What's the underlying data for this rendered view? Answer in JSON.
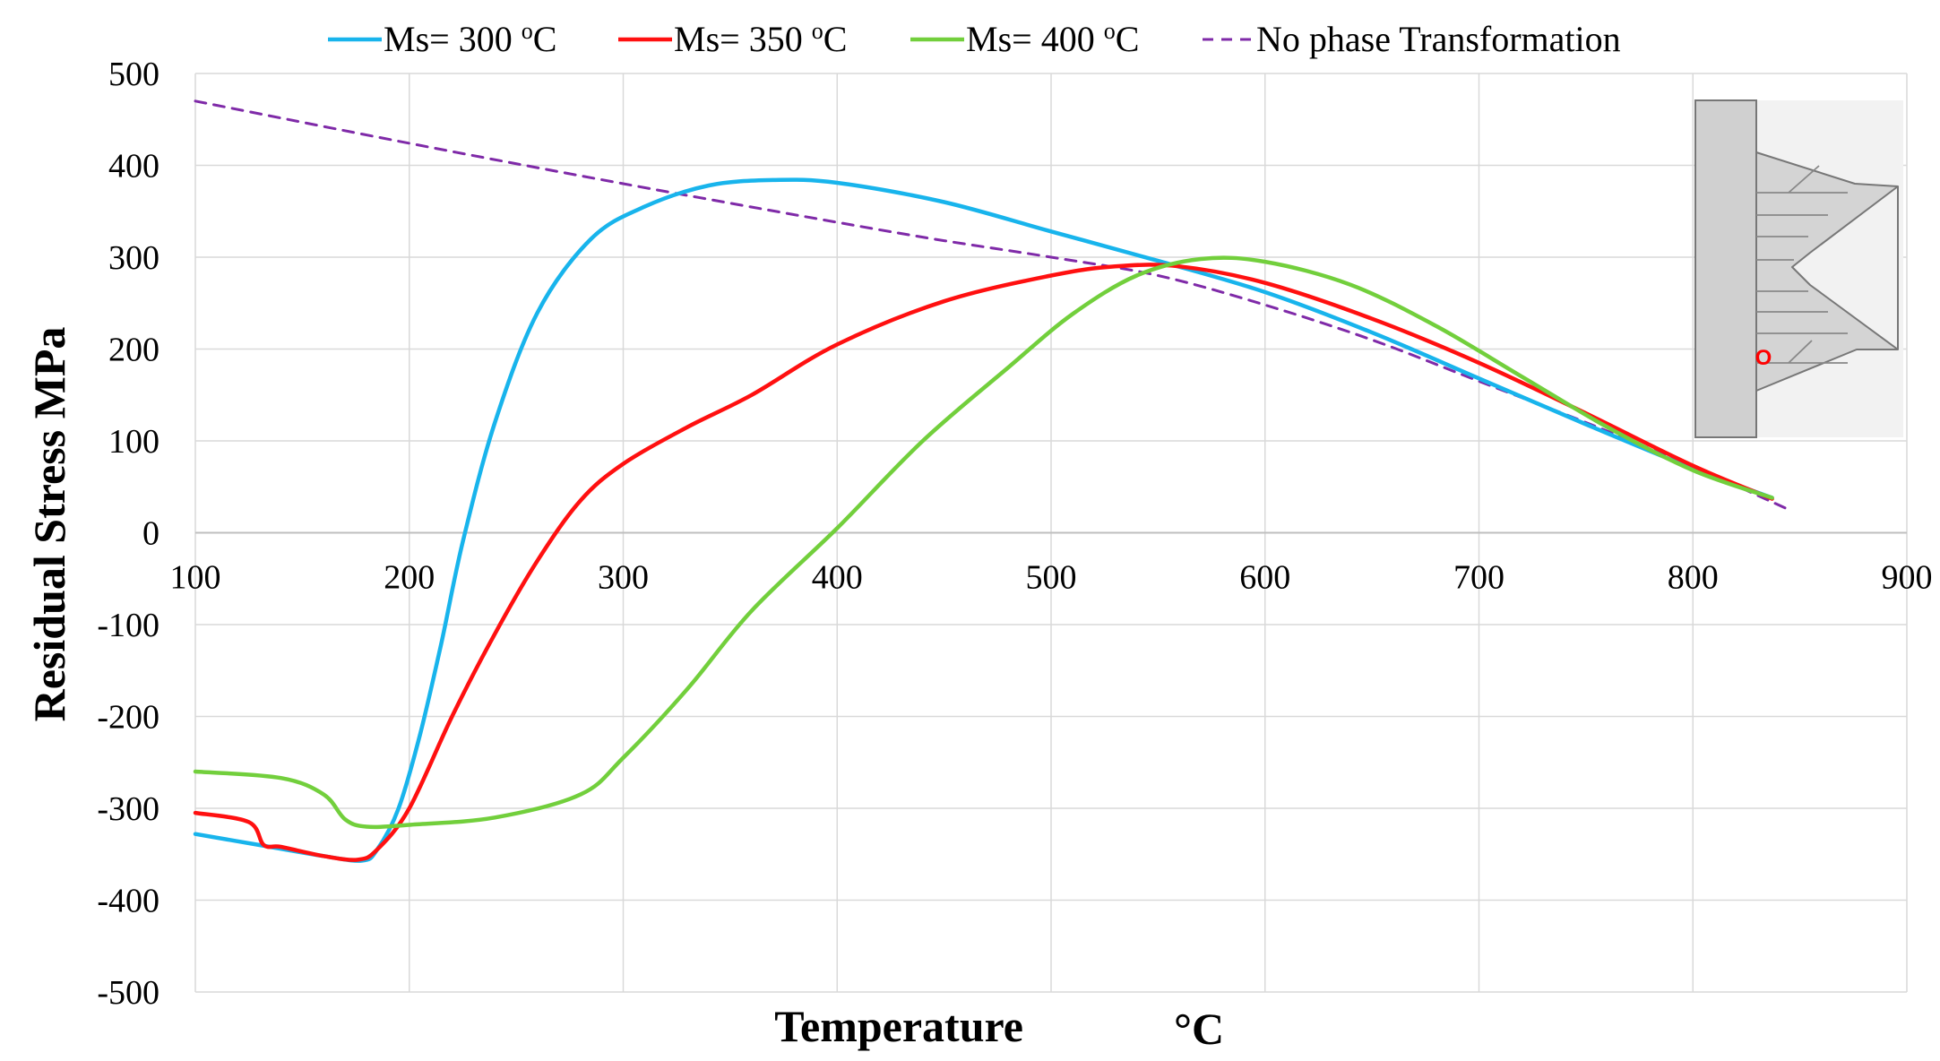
{
  "chart_data": {
    "type": "line",
    "title": "",
    "xlabel": "Temperature",
    "xlabel_unit": "°C",
    "ylabel": "Residual Stress  MPa",
    "xlim": [
      100,
      900
    ],
    "ylim": [
      -500,
      500
    ],
    "x_ticks": [
      "100",
      "200",
      "300",
      "400",
      "500",
      "600",
      "700",
      "800",
      "900"
    ],
    "y_ticks": [
      "500",
      "400",
      "300",
      "200",
      "100",
      "0",
      "-100",
      "-200",
      "-300",
      "-400",
      "-500"
    ],
    "grid": true,
    "legend_position": "top",
    "series": [
      {
        "name": "Ms= 300 °C",
        "label_prefix": "Ms=",
        "label_value": "300",
        "label_unit": "°C",
        "color": "#18b4ec",
        "dash": "solid",
        "points": [
          [
            100,
            -328
          ],
          [
            130,
            -340
          ],
          [
            160,
            -352
          ],
          [
            178,
            -357
          ],
          [
            185,
            -345
          ],
          [
            195,
            -300
          ],
          [
            205,
            -220
          ],
          [
            215,
            -120
          ],
          [
            225,
            -10
          ],
          [
            240,
            120
          ],
          [
            260,
            240
          ],
          [
            285,
            320
          ],
          [
            310,
            355
          ],
          [
            340,
            378
          ],
          [
            370,
            384
          ],
          [
            400,
            381
          ],
          [
            450,
            360
          ],
          [
            500,
            328
          ],
          [
            550,
            296
          ],
          [
            600,
            262
          ],
          [
            650,
            218
          ],
          [
            700,
            168
          ],
          [
            750,
            118
          ],
          [
            800,
            70
          ],
          [
            837,
            38
          ]
        ]
      },
      {
        "name": "Ms= 350 °C",
        "label_prefix": "Ms=",
        "label_value": "350",
        "label_unit": "°C",
        "color": "#ff1010",
        "dash": "solid",
        "points": [
          [
            100,
            -305
          ],
          [
            125,
            -315
          ],
          [
            132,
            -340
          ],
          [
            140,
            -342
          ],
          [
            160,
            -352
          ],
          [
            176,
            -356
          ],
          [
            185,
            -345
          ],
          [
            200,
            -300
          ],
          [
            220,
            -200
          ],
          [
            240,
            -110
          ],
          [
            260,
            -30
          ],
          [
            280,
            35
          ],
          [
            300,
            75
          ],
          [
            330,
            115
          ],
          [
            360,
            150
          ],
          [
            400,
            205
          ],
          [
            450,
            252
          ],
          [
            500,
            280
          ],
          [
            530,
            290
          ],
          [
            560,
            290
          ],
          [
            600,
            272
          ],
          [
            650,
            233
          ],
          [
            700,
            185
          ],
          [
            750,
            130
          ],
          [
            800,
            73
          ],
          [
            837,
            37
          ]
        ]
      },
      {
        "name": "Ms= 400 °C",
        "label_prefix": "Ms=",
        "label_value": "400",
        "label_unit": "°C",
        "color": "#72cf3c",
        "dash": "solid",
        "points": [
          [
            100,
            -260
          ],
          [
            140,
            -267
          ],
          [
            160,
            -285
          ],
          [
            170,
            -312
          ],
          [
            180,
            -320
          ],
          [
            200,
            -318
          ],
          [
            240,
            -310
          ],
          [
            280,
            -285
          ],
          [
            300,
            -245
          ],
          [
            330,
            -170
          ],
          [
            360,
            -85
          ],
          [
            400,
            5
          ],
          [
            440,
            100
          ],
          [
            480,
            180
          ],
          [
            510,
            238
          ],
          [
            540,
            280
          ],
          [
            570,
            298
          ],
          [
            600,
            295
          ],
          [
            640,
            270
          ],
          [
            680,
            225
          ],
          [
            720,
            170
          ],
          [
            760,
            115
          ],
          [
            800,
            68
          ],
          [
            837,
            38
          ]
        ]
      },
      {
        "name": "No phase Transformation",
        "label_prefix": "",
        "label_value": "",
        "label_unit": "",
        "color": "#7f2aa8",
        "dash": "dashed",
        "points": [
          [
            100,
            470
          ],
          [
            200,
            424
          ],
          [
            300,
            380
          ],
          [
            400,
            338
          ],
          [
            450,
            318
          ],
          [
            500,
            300
          ],
          [
            550,
            280
          ],
          [
            600,
            248
          ],
          [
            650,
            210
          ],
          [
            700,
            165
          ],
          [
            750,
            120
          ],
          [
            800,
            72
          ],
          [
            845,
            25
          ]
        ]
      }
    ],
    "inset": {
      "description_label": "O",
      "marker_color": "#ff0000"
    }
  }
}
